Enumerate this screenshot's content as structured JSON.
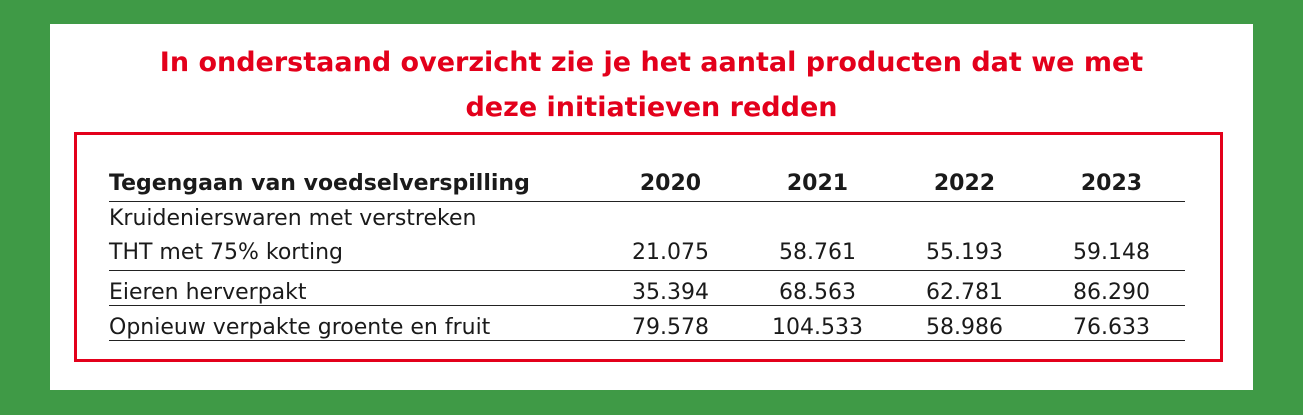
{
  "heading": {
    "line1": "In onderstaand overzicht zie je het aantal producten dat we met",
    "line2": "deze initiatieven redden"
  },
  "table": {
    "header": [
      "Tegengaan van voedselverspilling",
      "2020",
      "2021",
      "2022",
      "2023"
    ],
    "rows": [
      {
        "label_line1": "Kruidenierswaren met verstreken",
        "label_line2": "THT met 75% korting",
        "values": [
          "21.075",
          "58.761",
          "55.193",
          "59.148"
        ]
      },
      {
        "label": "Eieren herverpakt",
        "values": [
          "35.394",
          "68.563",
          "62.781",
          "86.290"
        ]
      },
      {
        "label": "Opnieuw verpakte groente en fruit",
        "values": [
          "79.578",
          "104.533",
          "58.986",
          "76.633"
        ]
      }
    ]
  },
  "colors": {
    "background_green": "#3f9a46",
    "accent_red": "#e3001b",
    "card_white": "#ffffff",
    "text": "#1a1a1a"
  }
}
